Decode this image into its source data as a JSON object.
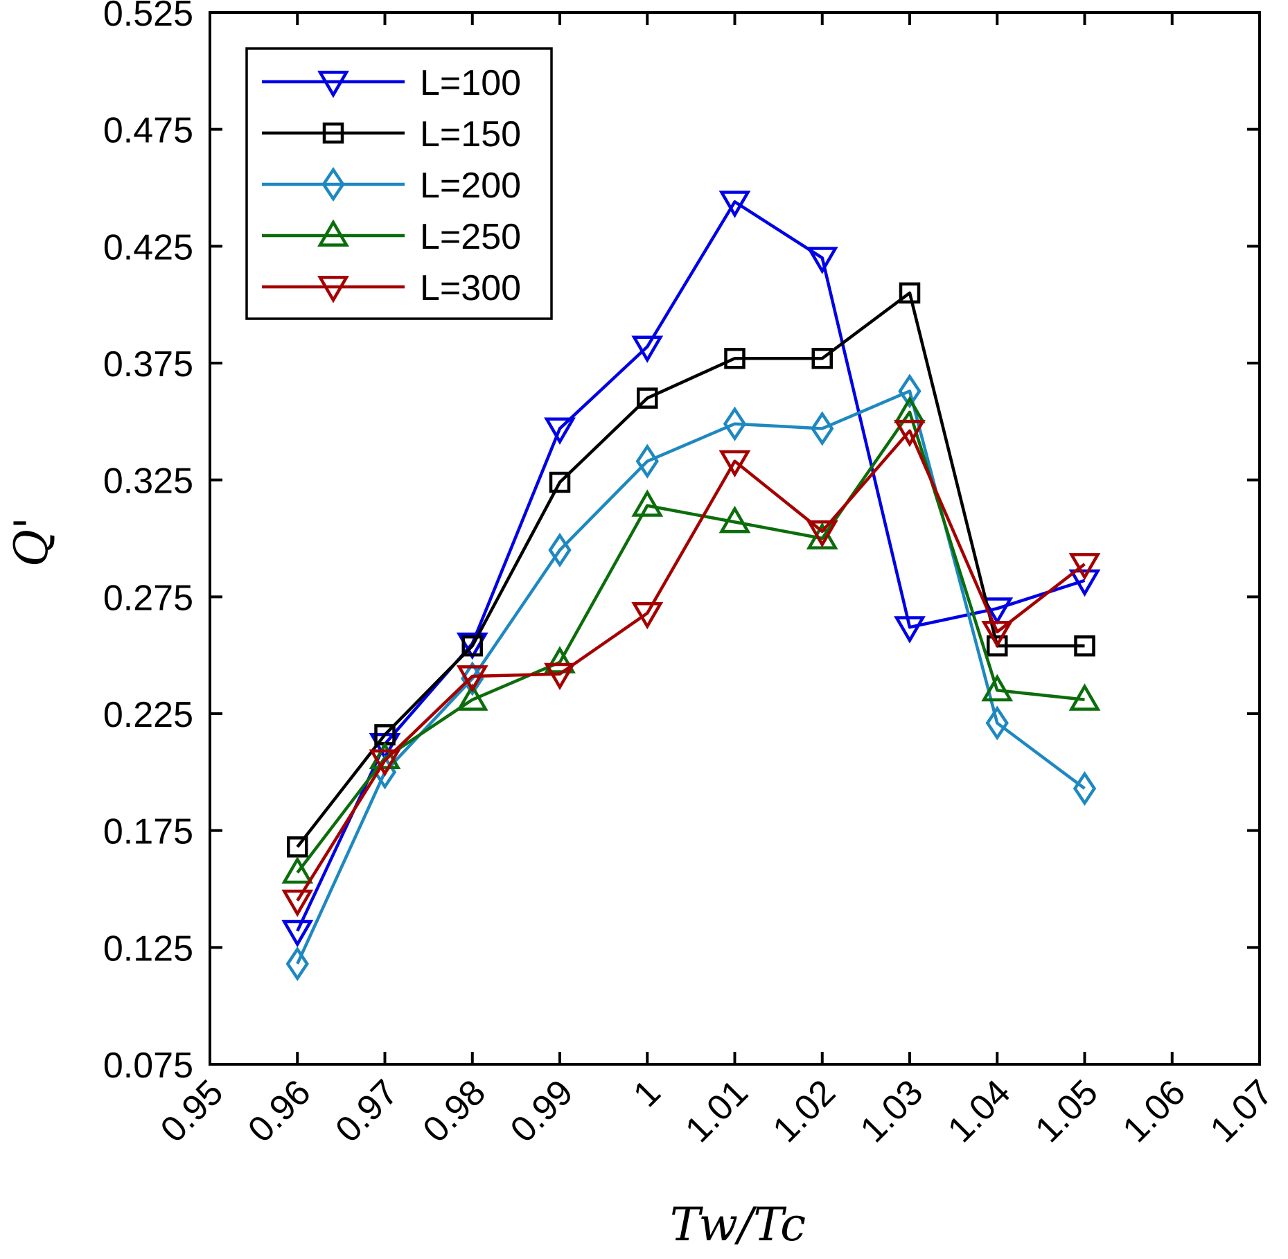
{
  "chart_data": {
    "type": "line",
    "title": "",
    "xlabel": "Tw/Tc",
    "ylabel": "Q'",
    "xlim": [
      0.95,
      1.07
    ],
    "ylim": [
      0.075,
      0.525
    ],
    "xticks": [
      "0.95",
      "0.96",
      "0.97",
      "0.98",
      "0.99",
      "1",
      "1.01",
      "1.02",
      "1.03",
      "1.04",
      "1.05",
      "1.06",
      "1.07"
    ],
    "xtick_values": [
      0.95,
      0.96,
      0.97,
      0.98,
      0.99,
      1.0,
      1.01,
      1.02,
      1.03,
      1.04,
      1.05,
      1.06,
      1.07
    ],
    "yticks": [
      "0.075",
      "0.125",
      "0.175",
      "0.225",
      "0.275",
      "0.325",
      "0.375",
      "0.425",
      "0.475",
      "0.525"
    ],
    "ytick_values": [
      0.075,
      0.125,
      0.175,
      0.225,
      0.275,
      0.325,
      0.375,
      0.425,
      0.475,
      0.525
    ],
    "grid": false,
    "legend_position": "top-left",
    "x": [
      0.96,
      0.97,
      0.98,
      0.99,
      1.0,
      1.01,
      1.02,
      1.03,
      1.04,
      1.05
    ],
    "series": [
      {
        "name": "L=100",
        "color": "#0000e6",
        "marker": "triangle-down",
        "values": [
          0.132,
          0.212,
          0.255,
          0.347,
          0.382,
          0.444,
          0.42,
          0.262,
          0.27,
          0.282
        ]
      },
      {
        "name": "L=150",
        "color": "#000000",
        "marker": "square",
        "values": [
          0.168,
          0.216,
          0.254,
          0.324,
          0.36,
          0.377,
          0.377,
          0.405,
          0.254,
          0.254
        ]
      },
      {
        "name": "L=200",
        "color": "#1e88c0",
        "marker": "diamond",
        "values": [
          0.118,
          0.2,
          0.24,
          0.295,
          0.333,
          0.349,
          0.347,
          0.363,
          0.221,
          0.193
        ]
      },
      {
        "name": "L=250",
        "color": "#0b6d0b",
        "marker": "triangle-up",
        "values": [
          0.157,
          0.206,
          0.231,
          0.247,
          0.314,
          0.307,
          0.3,
          0.354,
          0.235,
          0.231
        ]
      },
      {
        "name": "L=300",
        "color": "#a50000",
        "marker": "triangle-down",
        "values": [
          0.145,
          0.205,
          0.241,
          0.242,
          0.268,
          0.333,
          0.303,
          0.346,
          0.26,
          0.289
        ]
      }
    ]
  }
}
